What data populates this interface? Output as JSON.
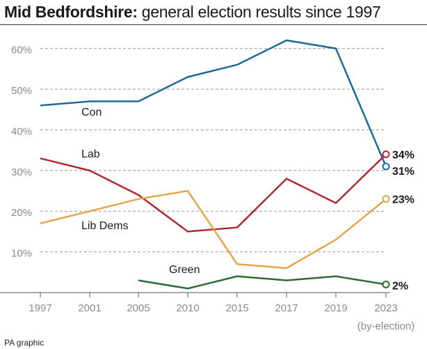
{
  "header": {
    "title_bold": "Mid Bedfordshire:",
    "title_rest": " general election results since 1997"
  },
  "footer": {
    "credit": "PA graphic"
  },
  "chart_data": {
    "type": "line",
    "title": "Mid Bedfordshire: general election results since 1997",
    "categories": [
      "1997",
      "2001",
      "2005",
      "2010",
      "2015",
      "2017",
      "2019",
      "2023"
    ],
    "category_note": "(by-election)",
    "ylim": [
      0,
      63
    ],
    "yticks": [
      10,
      20,
      30,
      40,
      50,
      60
    ],
    "ytick_labels": [
      "10%",
      "20%",
      "30%",
      "40%",
      "50%",
      "60%"
    ],
    "grid": "horizontal-dashed",
    "series": [
      {
        "name": "Con",
        "color": "#1e6a96",
        "values": [
          46,
          47,
          47,
          53,
          56,
          62,
          60,
          31
        ],
        "end_label": "31%"
      },
      {
        "name": "Lab",
        "color": "#b22830",
        "values": [
          33,
          30,
          24,
          15,
          16,
          28,
          22,
          34
        ],
        "end_label": "34%"
      },
      {
        "name": "Lib Dems",
        "color": "#e3a44a",
        "values": [
          17,
          20,
          23,
          25,
          7,
          6,
          13,
          23
        ],
        "end_label": "23%"
      },
      {
        "name": "Green",
        "color": "#2e6b34",
        "values": [
          null,
          null,
          3,
          1,
          4,
          3,
          4,
          2
        ],
        "end_label": "2%"
      }
    ]
  }
}
